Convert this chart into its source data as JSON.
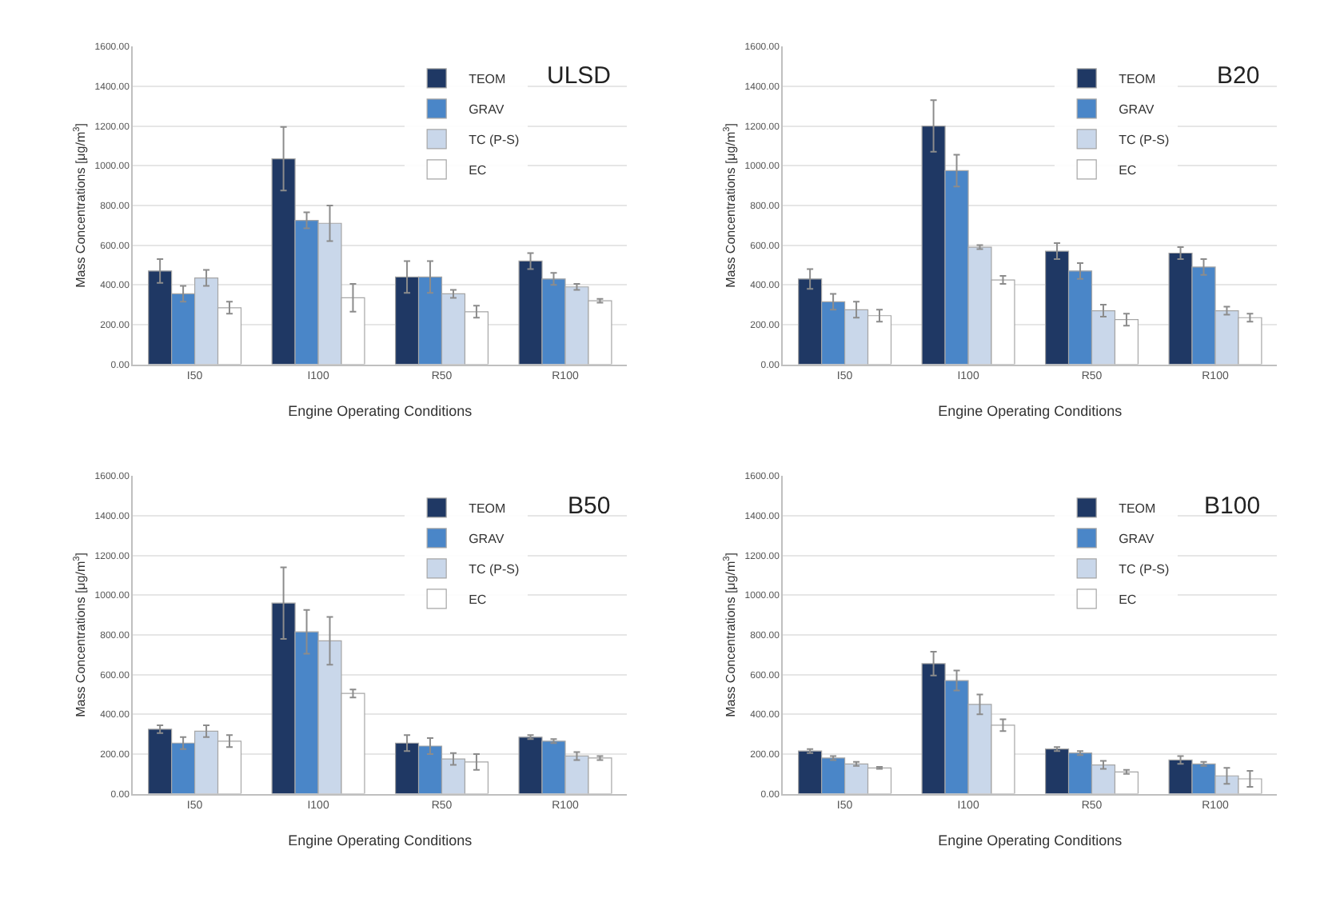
{
  "chart_data": [
    {
      "type": "bar",
      "title": "ULSD",
      "xlabel": "Engine Operating Conditions",
      "ylabel": "Mass Concentrations [μg/m$^{3}$]",
      "categories": [
        "I50",
        "I100",
        "R50",
        "R100"
      ],
      "ylim": [
        0,
        1600
      ],
      "yticks": [
        {
          "value": 0,
          "label": "0.00"
        },
        {
          "value": 200,
          "label": "200.00"
        },
        {
          "value": 400,
          "label": "400.00"
        },
        {
          "value": 600,
          "label": "600.00"
        },
        {
          "value": 800,
          "label": "800.00"
        },
        {
          "value": 1000,
          "label": "1000.00"
        },
        {
          "value": 1200,
          "label": "1200.00"
        },
        {
          "value": 1400,
          "label": "1400.00"
        },
        {
          "value": 1600,
          "label": "1600.00"
        }
      ],
      "grid": "y",
      "legend": "top",
      "series": [
        {
          "name": "TEOM",
          "color": "#1f3864",
          "values": [
            470,
            1035,
            440,
            520
          ],
          "errors": [
            60,
            160,
            80,
            40
          ]
        },
        {
          "name": "GRAV",
          "color": "#4a86c8",
          "values": [
            355,
            725,
            440,
            430
          ],
          "errors": [
            40,
            40,
            80,
            30
          ]
        },
        {
          "name": "TC (P-S)",
          "color": "#c9d7ea",
          "values": [
            435,
            710,
            355,
            390
          ],
          "errors": [
            40,
            90,
            20,
            15
          ]
        },
        {
          "name": "EC",
          "color": "#ffffff",
          "values": [
            285,
            335,
            265,
            320
          ],
          "errors": [
            30,
            70,
            30,
            10
          ]
        }
      ]
    },
    {
      "type": "bar",
      "title": "B20",
      "xlabel": "Engine Operating Conditions",
      "ylabel": "Mass Concentrations [μg/m$^{3}$]",
      "categories": [
        "I50",
        "I100",
        "R50",
        "R100"
      ],
      "ylim": [
        0,
        1600
      ],
      "yticks": [
        {
          "value": 0,
          "label": "0.00"
        },
        {
          "value": 200,
          "label": "200.00"
        },
        {
          "value": 400,
          "label": "400.00"
        },
        {
          "value": 600,
          "label": "600.00"
        },
        {
          "value": 800,
          "label": "800.00"
        },
        {
          "value": 1000,
          "label": "1000.00"
        },
        {
          "value": 1200,
          "label": "1200.00"
        },
        {
          "value": 1400,
          "label": "1400.00"
        },
        {
          "value": 1600,
          "label": "1600.00"
        }
      ],
      "grid": "y",
      "legend": "top",
      "series": [
        {
          "name": "TEOM",
          "color": "#1f3864",
          "values": [
            430,
            1200,
            570,
            560
          ],
          "errors": [
            50,
            130,
            40,
            30
          ]
        },
        {
          "name": "GRAV",
          "color": "#4a86c8",
          "values": [
            315,
            975,
            470,
            490
          ],
          "errors": [
            40,
            80,
            40,
            40
          ]
        },
        {
          "name": "TC (P-S)",
          "color": "#c9d7ea",
          "values": [
            275,
            590,
            270,
            270
          ],
          "errors": [
            40,
            10,
            30,
            20
          ]
        },
        {
          "name": "EC",
          "color": "#ffffff",
          "values": [
            245,
            425,
            225,
            235
          ],
          "errors": [
            30,
            20,
            30,
            20
          ]
        }
      ]
    },
    {
      "type": "bar",
      "title": "B50",
      "xlabel": "Engine Operating Conditions",
      "ylabel": "Mass Concentrations [μg/m$^{3}$]",
      "categories": [
        "I50",
        "I100",
        "R50",
        "R100"
      ],
      "ylim": [
        0,
        1600
      ],
      "yticks": [
        {
          "value": 0,
          "label": "0.00"
        },
        {
          "value": 200,
          "label": "200.00"
        },
        {
          "value": 400,
          "label": "400.00"
        },
        {
          "value": 600,
          "label": "600.00"
        },
        {
          "value": 800,
          "label": "800.00"
        },
        {
          "value": 1000,
          "label": "1000.00"
        },
        {
          "value": 1200,
          "label": "1200.00"
        },
        {
          "value": 1400,
          "label": "1400.00"
        },
        {
          "value": 1600,
          "label": "1600.00"
        }
      ],
      "grid": "y",
      "legend": "top",
      "series": [
        {
          "name": "TEOM",
          "color": "#1f3864",
          "values": [
            325,
            960,
            255,
            285
          ],
          "errors": [
            20,
            180,
            40,
            10
          ]
        },
        {
          "name": "GRAV",
          "color": "#4a86c8",
          "values": [
            255,
            815,
            240,
            265
          ],
          "errors": [
            30,
            110,
            40,
            10
          ]
        },
        {
          "name": "TC (P-S)",
          "color": "#c9d7ea",
          "values": [
            315,
            770,
            175,
            190
          ],
          "errors": [
            30,
            120,
            30,
            20
          ]
        },
        {
          "name": "EC",
          "color": "#ffffff",
          "values": [
            265,
            505,
            160,
            180
          ],
          "errors": [
            30,
            20,
            40,
            10
          ]
        }
      ]
    },
    {
      "type": "bar",
      "title": "B100",
      "xlabel": "Engine Operating Conditions",
      "ylabel": "Mass Concentrations [μg/m$^{3}$]",
      "categories": [
        "I50",
        "I100",
        "R50",
        "R100"
      ],
      "ylim": [
        0,
        1600
      ],
      "yticks": [
        {
          "value": 0,
          "label": "0.00"
        },
        {
          "value": 200,
          "label": "200.00"
        },
        {
          "value": 400,
          "label": "400.00"
        },
        {
          "value": 600,
          "label": "600.00"
        },
        {
          "value": 800,
          "label": "800.00"
        },
        {
          "value": 1000,
          "label": "1000.00"
        },
        {
          "value": 1200,
          "label": "1200.00"
        },
        {
          "value": 1400,
          "label": "1400.00"
        },
        {
          "value": 1600,
          "label": "1600.00"
        }
      ],
      "grid": "y",
      "legend": "top",
      "series": [
        {
          "name": "TEOM",
          "color": "#1f3864",
          "values": [
            215,
            655,
            225,
            170
          ],
          "errors": [
            10,
            60,
            10,
            20
          ]
        },
        {
          "name": "GRAV",
          "color": "#4a86c8",
          "values": [
            180,
            570,
            205,
            150
          ],
          "errors": [
            10,
            50,
            10,
            10
          ]
        },
        {
          "name": "TC (P-S)",
          "color": "#c9d7ea",
          "values": [
            150,
            450,
            145,
            90
          ],
          "errors": [
            10,
            50,
            20,
            40
          ]
        },
        {
          "name": "EC",
          "color": "#ffffff",
          "values": [
            130,
            345,
            110,
            75
          ],
          "errors": [
            5,
            30,
            10,
            40
          ]
        }
      ]
    }
  ]
}
